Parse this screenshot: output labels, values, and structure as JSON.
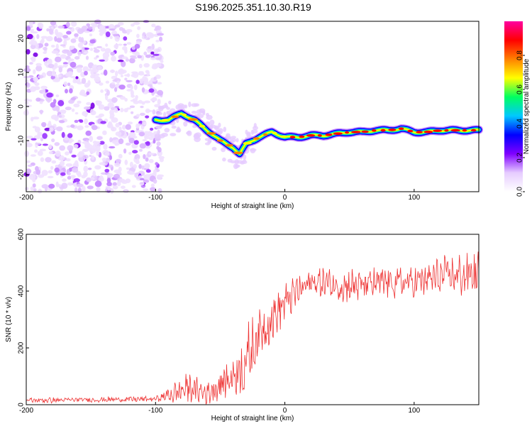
{
  "title": "S196.2025.351.10.30.R19",
  "chart_data": [
    {
      "type": "heatmap",
      "xlabel": "Height of straight line (km)",
      "ylabel": "Frequency (Hz)",
      "xlim": [
        -200,
        150
      ],
      "ylim": [
        -25,
        25
      ],
      "xticks": [
        -200,
        -100,
        0,
        100
      ],
      "xtick_labels": [
        "-200",
        "-100",
        "0",
        "100"
      ],
      "yticks": [
        -20,
        -10,
        0,
        10,
        20
      ],
      "ytick_labels": [
        "-20",
        "-10",
        "0",
        "10",
        "20"
      ],
      "colorbar": {
        "label": "Normalized spectral amplitude",
        "range": [
          0,
          1
        ],
        "ticks": [
          0.0,
          0.2,
          0.4,
          0.6,
          0.8
        ],
        "tick_labels": [
          "0.0",
          "0.2",
          "0.4",
          "0.6",
          "0.8"
        ],
        "colormap": [
          "#ffffff",
          "#e6ccff",
          "#8000ff",
          "#0000ff",
          "#00c8ff",
          "#00ff60",
          "#ffff00",
          "#ff8000",
          "#ff0000",
          "#ff00a0"
        ]
      },
      "noise_region_x": [
        -200,
        -95
      ],
      "ridge": {
        "x": [
          -100,
          -90,
          -80,
          -70,
          -60,
          -50,
          -40,
          -35,
          -30,
          -20,
          -10,
          0,
          10,
          20,
          30,
          40,
          50,
          60,
          70,
          80,
          90,
          100,
          110,
          120,
          130,
          140,
          150
        ],
        "y": [
          -4,
          -4,
          -2,
          -4,
          -7,
          -10,
          -12,
          -14,
          -11,
          -9,
          -7.5,
          -9,
          -9,
          -8.5,
          -8.5,
          -8,
          -7.5,
          -7.5,
          -7,
          -7,
          -6.5,
          -7.5,
          -7.5,
          -7,
          -7,
          -7,
          -7
        ]
      }
    },
    {
      "type": "line",
      "xlabel": "Height of straight line (km)",
      "ylabel": "SNR (10 * v/v)",
      "xlim": [
        -200,
        150
      ],
      "ylim": [
        0,
        600
      ],
      "xticks": [
        -200,
        -100,
        0,
        100
      ],
      "xtick_labels": [
        "-200",
        "-100",
        "0",
        "100"
      ],
      "yticks": [
        0,
        200,
        400,
        600
      ],
      "ytick_labels": [
        "0",
        "200",
        "400",
        "600"
      ],
      "series": [
        {
          "name": "SNR",
          "color": "#ee3333",
          "envelope_x": [
            -200,
            -100,
            -85,
            -75,
            -60,
            -50,
            -40,
            -30,
            -20,
            -10,
            0,
            10,
            20,
            30,
            40,
            60,
            80,
            100,
            120,
            150
          ],
          "envelope_mean": [
            15,
            20,
            40,
            60,
            40,
            70,
            100,
            150,
            250,
            300,
            360,
            400,
            430,
            430,
            420,
            420,
            430,
            430,
            450,
            460
          ],
          "envelope_spread": [
            10,
            10,
            40,
            50,
            40,
            60,
            70,
            130,
            80,
            80,
            70,
            60,
            50,
            60,
            60,
            60,
            60,
            60,
            70,
            80
          ]
        }
      ]
    }
  ]
}
